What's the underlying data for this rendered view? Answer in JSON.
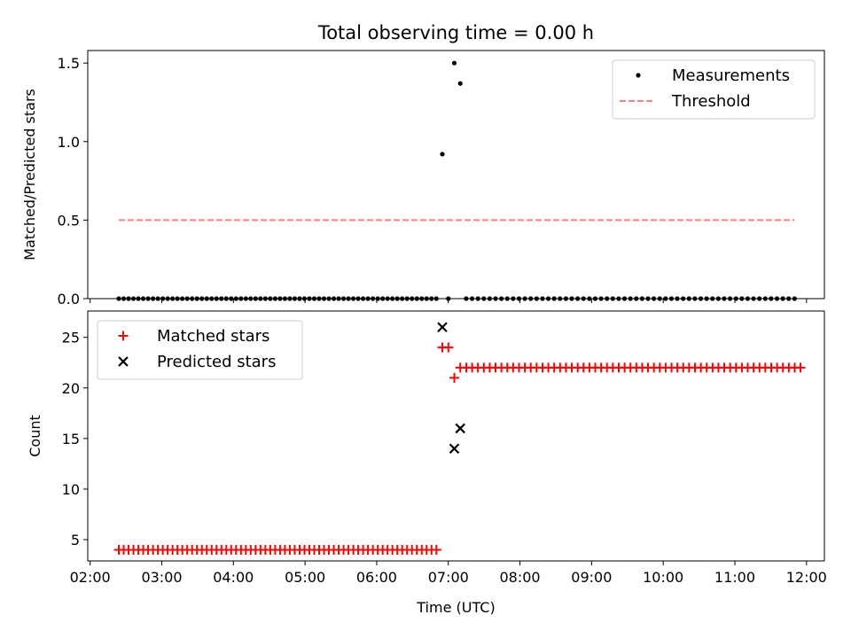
{
  "chart_data": [
    {
      "type": "scatter",
      "title": "Total observing time = 0.00 h",
      "xlabel": "",
      "ylabel": "Matched/Predicted stars",
      "ylim": [
        0,
        1.58
      ],
      "yticks": [
        0.0,
        0.5,
        1.0,
        1.5
      ],
      "ytick_labels": [
        "0.0",
        "0.5",
        "1.0",
        "1.5"
      ],
      "xlim": [
        "01:58",
        "12:15"
      ],
      "xticks": [
        "02:00",
        "03:00",
        "04:00",
        "05:00",
        "06:00",
        "07:00",
        "08:00",
        "09:00",
        "10:00",
        "11:00",
        "12:00"
      ],
      "grid": false,
      "legend": "top-right",
      "series": [
        {
          "name": "Measurements",
          "marker": "dot",
          "color": "#000000",
          "range_points": [
            {
              "start": "02:24",
              "end": "06:50",
              "count": 66,
              "y": 0.0
            },
            {
              "start": "07:15",
              "end": "11:50",
              "count": 57,
              "y": 0.0
            }
          ],
          "points": [
            {
              "x": "06:55",
              "y": 0.92
            },
            {
              "x": "07:00",
              "y": 0.0
            },
            {
              "x": "07:05",
              "y": 1.5
            },
            {
              "x": "07:10",
              "y": 1.37
            }
          ]
        },
        {
          "name": "Threshold",
          "style": "dashed",
          "color": "#ff7f7f",
          "x": [
            "02:24",
            "11:50"
          ],
          "y": [
            0.5,
            0.5
          ]
        }
      ]
    },
    {
      "type": "scatter",
      "xlabel": "Time (UTC)",
      "ylabel": "Count",
      "ylim": [
        2.9,
        27.6
      ],
      "yticks": [
        5,
        10,
        15,
        20,
        25
      ],
      "ytick_labels": [
        "5",
        "10",
        "15",
        "20",
        "25"
      ],
      "xlim": [
        "01:58",
        "12:15"
      ],
      "xticks": [
        "02:00",
        "03:00",
        "04:00",
        "05:00",
        "06:00",
        "07:00",
        "08:00",
        "09:00",
        "10:00",
        "11:00",
        "12:00"
      ],
      "xtick_labels": [
        "02:00",
        "03:00",
        "04:00",
        "05:00",
        "06:00",
        "07:00",
        "08:00",
        "09:00",
        "10:00",
        "11:00",
        "12:00"
      ],
      "grid": false,
      "legend": "top-left",
      "series": [
        {
          "name": "Matched stars",
          "marker": "plus",
          "color": "#ff0000",
          "range_points": [
            {
              "start": "02:24",
              "end": "06:50",
              "count": 66,
              "y": 4
            },
            {
              "start": "07:15",
              "end": "11:55",
              "count": 58,
              "y": 22
            }
          ],
          "points": [
            {
              "x": "06:55",
              "y": 24
            },
            {
              "x": "07:00",
              "y": 24
            },
            {
              "x": "07:05",
              "y": 21
            },
            {
              "x": "07:10",
              "y": 22
            }
          ]
        },
        {
          "name": "Predicted stars",
          "marker": "x",
          "color": "#000000",
          "points": [
            {
              "x": "06:55",
              "y": 26
            },
            {
              "x": "07:05",
              "y": 14
            },
            {
              "x": "07:10",
              "y": 16
            }
          ]
        }
      ]
    }
  ]
}
